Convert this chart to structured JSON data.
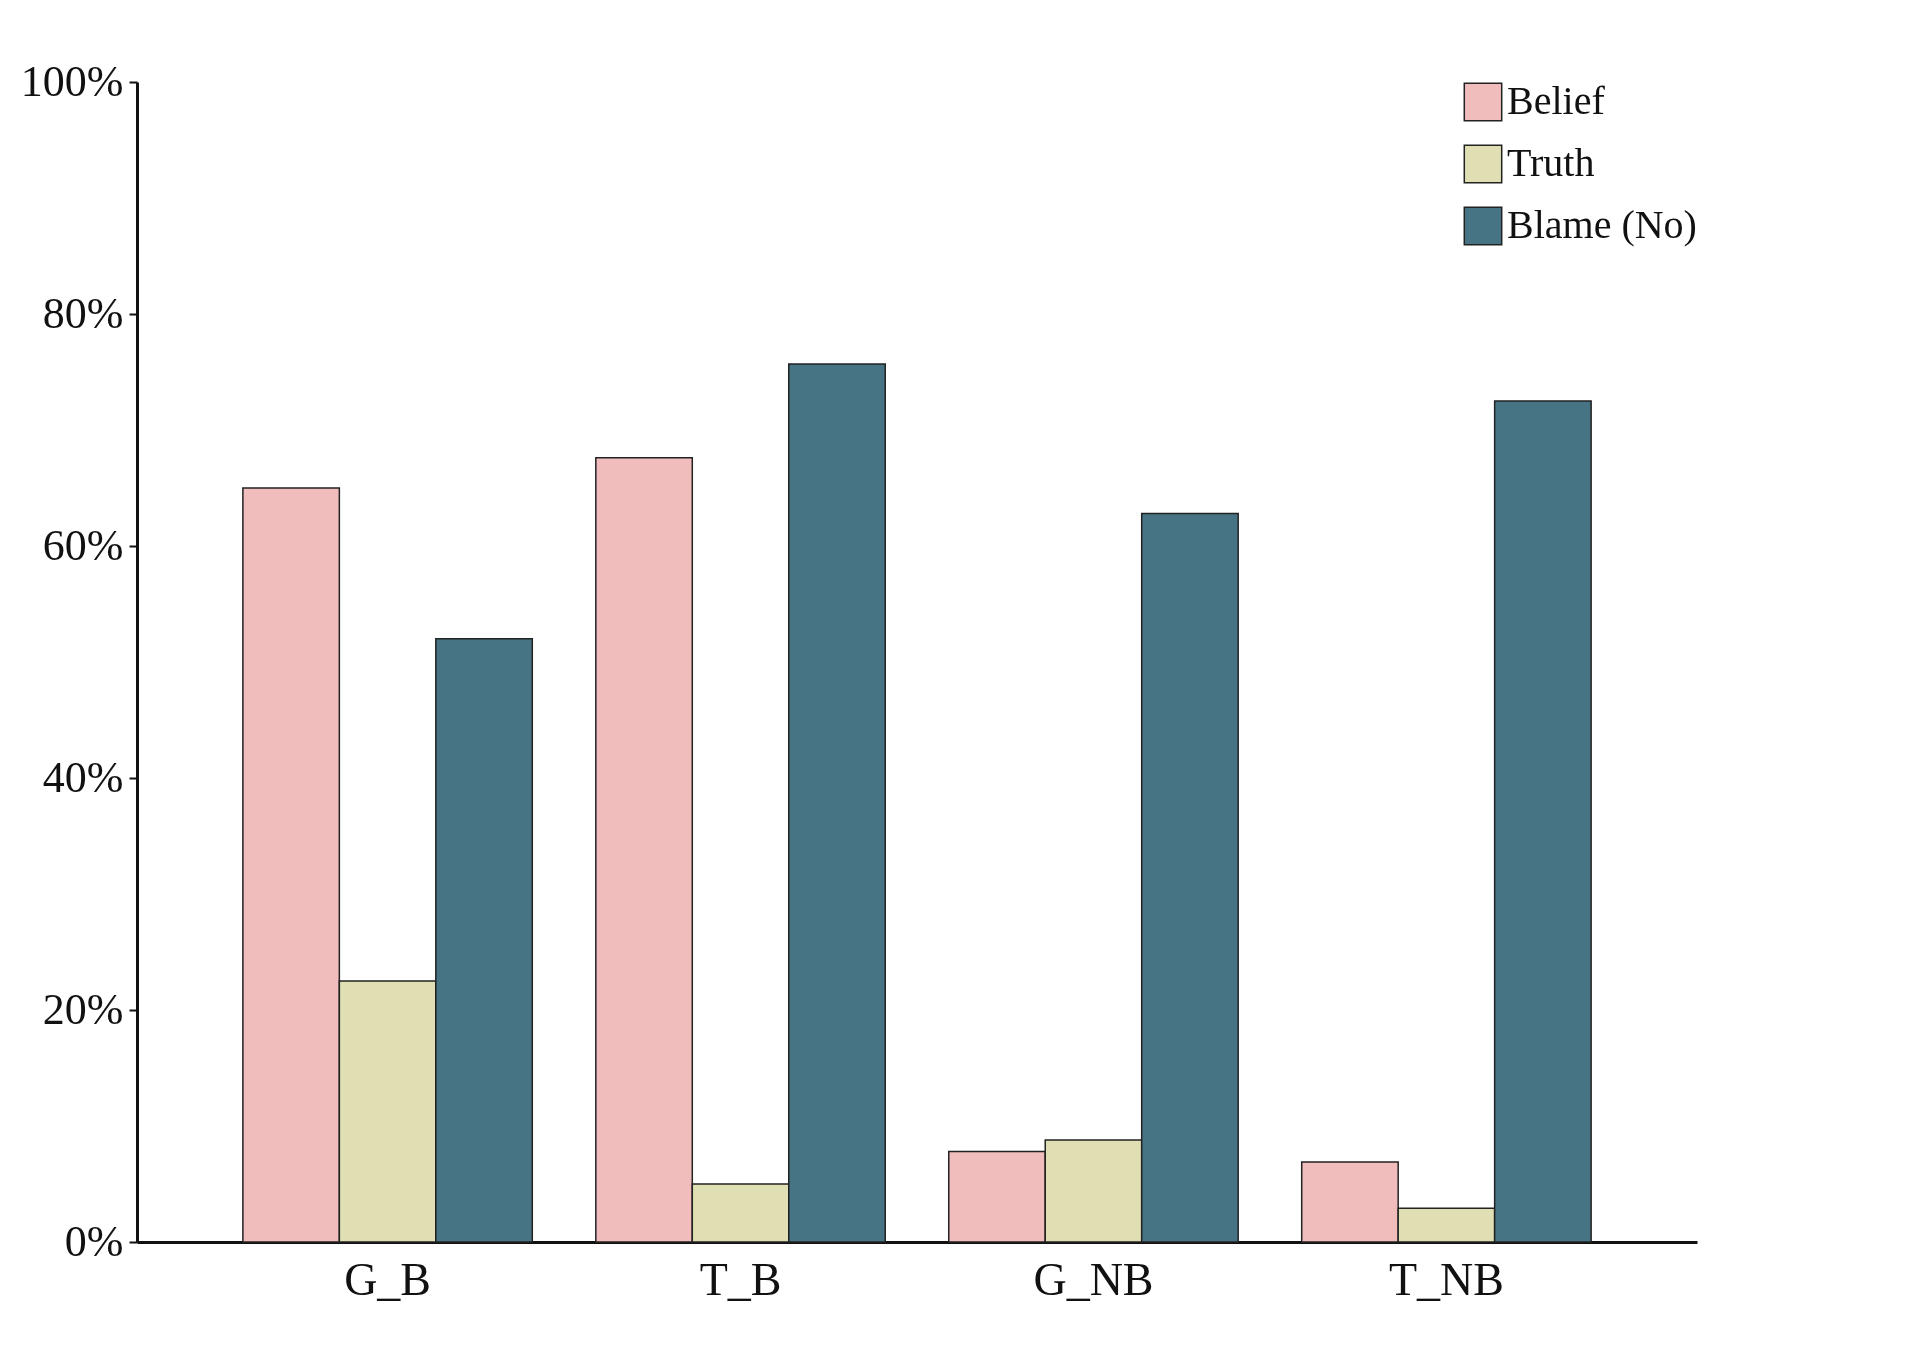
{
  "chart_data": {
    "type": "bar",
    "categories": [
      "G_B",
      "T_B",
      "G_NB",
      "T_NB"
    ],
    "series": [
      {
        "name": "Belief",
        "color": "#f0bcbc",
        "values": [
          65,
          67.6,
          7.8,
          6.9
        ]
      },
      {
        "name": "Truth",
        "color": "#dfdfb3",
        "values": [
          22.5,
          5,
          8.8,
          2.9
        ]
      },
      {
        "name": "Blame (No)",
        "color": "#477485",
        "values": [
          52,
          75.7,
          62.8,
          72.5
        ]
      }
    ],
    "ylim": [
      0,
      100
    ],
    "yticks": [
      {
        "value": 0,
        "label": "0%"
      },
      {
        "value": 20,
        "label": "20%"
      },
      {
        "value": 40,
        "label": "40%"
      },
      {
        "value": 60,
        "label": "60%"
      },
      {
        "value": 80,
        "label": "80%"
      },
      {
        "value": 100,
        "label": "100%"
      }
    ],
    "grid": false,
    "legend": "top right"
  }
}
